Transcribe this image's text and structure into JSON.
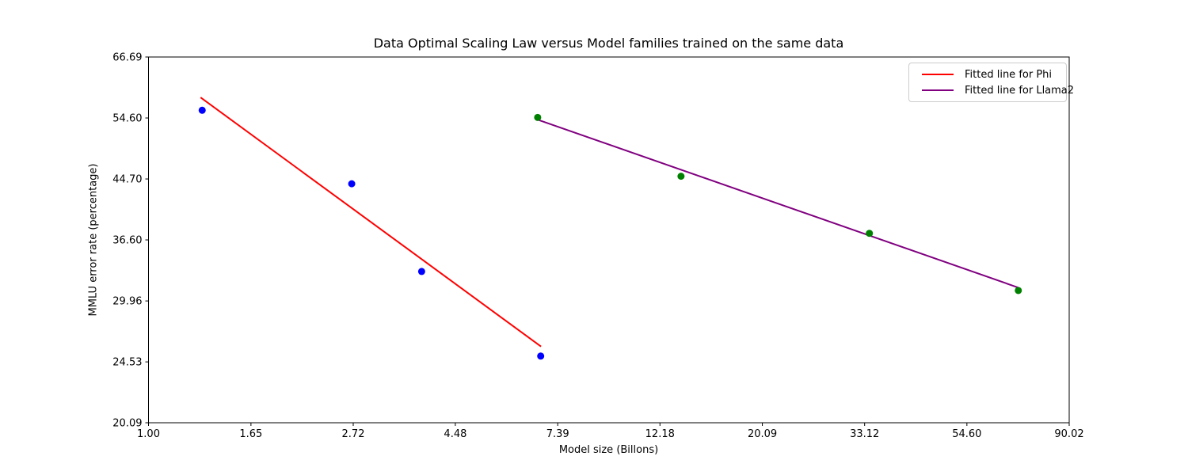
{
  "chart_data": {
    "type": "scatter",
    "title": "Data Optimal Scaling Law versus Model families trained on the same data",
    "xlabel": "Model size (Billons)",
    "ylabel": "MMLU error rate (percentage)",
    "x_scale": "log",
    "y_scale": "log",
    "xlim": [
      1.0,
      90.02
    ],
    "ylim": [
      20.09,
      66.69
    ],
    "x_ticks": [
      1.0,
      1.65,
      2.72,
      4.48,
      7.39,
      12.18,
      20.09,
      33.12,
      54.6,
      90.02
    ],
    "x_tick_labels": [
      "1.00",
      "1.65",
      "2.72",
      "4.48",
      "7.39",
      "12.18",
      "20.09",
      "33.12",
      "54.60",
      "90.02"
    ],
    "y_ticks": [
      20.09,
      24.53,
      29.96,
      36.6,
      44.7,
      54.6,
      66.69
    ],
    "y_tick_labels": [
      "20.09",
      "24.53",
      "29.96",
      "36.60",
      "44.70",
      "54.60",
      "66.69"
    ],
    "grid": false,
    "axis_color": "#000000",
    "background_color": "#ffffff",
    "series": [
      {
        "name": "Phi",
        "type": "scatter",
        "marker": "circle",
        "color": "#0000ff",
        "points": [
          [
            1.3,
            56.0
          ],
          [
            2.7,
            44.0
          ],
          [
            3.8,
            33.0
          ],
          [
            6.8,
            25.0
          ]
        ]
      },
      {
        "name": "Llama2",
        "type": "scatter",
        "marker": "circle",
        "color": "#008000",
        "points": [
          [
            6.7,
            54.7
          ],
          [
            13.5,
            45.1
          ],
          [
            33.9,
            37.4
          ],
          [
            70.2,
            31.0
          ]
        ]
      }
    ],
    "fit_lines": [
      {
        "name": "Fitted line for Phi",
        "color": "#ff0000",
        "x": [
          1.29,
          6.81
        ],
        "y": [
          58.4,
          25.8
        ]
      },
      {
        "name": "Fitted line for Llama2",
        "color": "#800080",
        "x": [
          6.7,
          70.2
        ],
        "y": [
          54.3,
          31.3
        ]
      }
    ],
    "legend_entries": [
      {
        "label": "Fitted line for Phi",
        "color": "#ff0000"
      },
      {
        "label": "Fitted line for Llama2",
        "color": "#800080"
      }
    ],
    "legend_position": "upper right"
  }
}
